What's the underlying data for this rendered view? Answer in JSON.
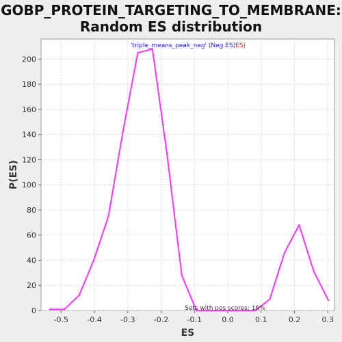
{
  "chart_data": {
    "type": "line",
    "title_lines": [
      "GOBP_PROTEIN_TARGETING_TO_MEMBRANE:",
      "Random ES distribution"
    ],
    "xlabel": "ES",
    "ylabel": "P(ES)",
    "xlim": [
      -0.56,
      0.32
    ],
    "ylim": [
      0,
      216
    ],
    "xticks": [
      -0.5,
      -0.4,
      -0.3,
      -0.2,
      -0.1,
      0.0,
      0.1,
      0.2,
      0.3
    ],
    "xtick_labels": [
      "-0.5",
      "-0.4",
      "-0.3",
      "-0.2",
      "-0.1",
      "0.0",
      "0.1",
      "0.2",
      "0.3"
    ],
    "yticks": [
      0,
      20,
      40,
      60,
      80,
      100,
      120,
      140,
      160,
      180,
      200
    ],
    "ytick_labels": [
      "0",
      "20",
      "40",
      "60",
      "80",
      "100",
      "120",
      "140",
      "160",
      "180",
      "200"
    ],
    "grid": true,
    "legend": {
      "placement": "top-center",
      "name_text": "'triple_means_peak_neg' (Neg ES)",
      "suffix_text": "ES)"
    },
    "annotation": "Sets with pos scores: 16%",
    "series": [
      {
        "color": "#ff33ff",
        "x": [
          -0.534,
          -0.49,
          -0.446,
          -0.402,
          -0.358,
          -0.314,
          -0.27,
          -0.226,
          -0.182,
          -0.138,
          -0.094,
          -0.05,
          -0.006,
          0.038,
          0.082,
          0.126,
          0.17,
          0.214,
          0.258,
          0.302
        ],
        "y": [
          1,
          1,
          12,
          40,
          75,
          143,
          205,
          208,
          124,
          28,
          0,
          0,
          0,
          0,
          0,
          9,
          46,
          68,
          31,
          8
        ]
      }
    ]
  }
}
